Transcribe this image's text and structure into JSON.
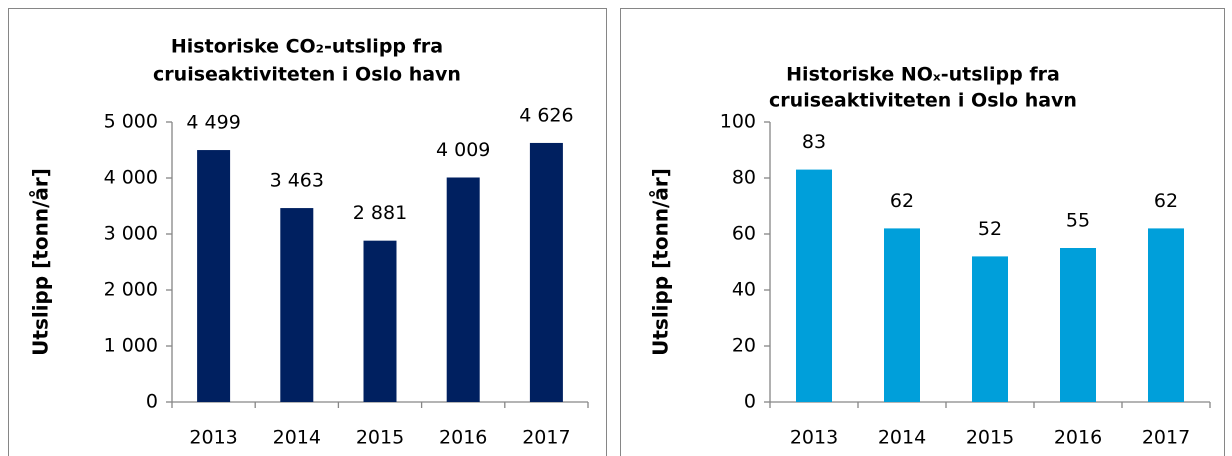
{
  "chart_data": [
    {
      "type": "bar",
      "title": [
        "Historiske CO₂-utslipp fra",
        "cruiseaktiviteten i Oslo havn"
      ],
      "y_label": "Utslipp [tonn/år]",
      "categories": [
        "2013",
        "2014",
        "2015",
        "2016",
        "2017"
      ],
      "values": [
        4499,
        3463,
        2881,
        4009,
        4626
      ],
      "value_labels": [
        "4 499",
        "3 463",
        "2 881",
        "4 009",
        "4 626"
      ],
      "color": "#002060",
      "ylim": [
        0,
        5000
      ],
      "yticks": [
        0,
        {
          "value": 1000,
          "label": "1 000"
        },
        {
          "value": 2000,
          "label": "2 000"
        },
        {
          "value": 3000,
          "label": "3 000"
        },
        {
          "value": 4000,
          "label": "4 000"
        },
        {
          "value": 5000,
          "label": "5 000"
        }
      ],
      "grid": false
    },
    {
      "type": "bar",
      "title": [
        "Historiske NOₓ-utslipp fra",
        "cruiseaktiviteten i Oslo havn"
      ],
      "y_label": "Utslipp [tonn/år]",
      "categories": [
        "2013",
        "2014",
        "2015",
        "2016",
        "2017"
      ],
      "values": [
        83,
        62,
        52,
        55,
        62
      ],
      "color": "#009fda",
      "ylim": [
        0,
        100
      ],
      "yticks": [
        0,
        20,
        40,
        60,
        80,
        100
      ],
      "grid": false
    }
  ]
}
